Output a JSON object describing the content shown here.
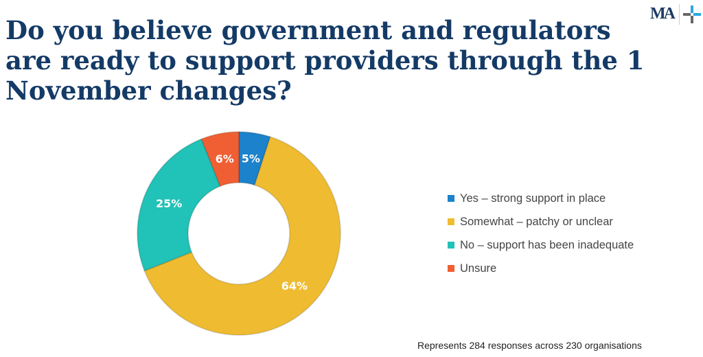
{
  "title": "Do you believe government and regulators are ready to support providers through the 1 November changes?",
  "logo": {
    "text": "MA"
  },
  "footnote": "Represents 284 responses across 230 organisations",
  "chart_data": {
    "type": "pie",
    "variant": "donut",
    "title": "Do you believe government and regulators are ready to support providers through the 1 November changes?",
    "categories": [
      "Yes – strong support in place",
      "Somewhat – patchy or unclear",
      "No – support has been inadequate",
      "Unsure"
    ],
    "values": [
      5,
      64,
      25,
      6
    ],
    "labels": [
      "5%",
      "64%",
      "25%",
      "6%"
    ],
    "colors": [
      "#1b82cb",
      "#efbc31",
      "#21c2b7",
      "#f05f33"
    ],
    "legend_position": "right"
  }
}
